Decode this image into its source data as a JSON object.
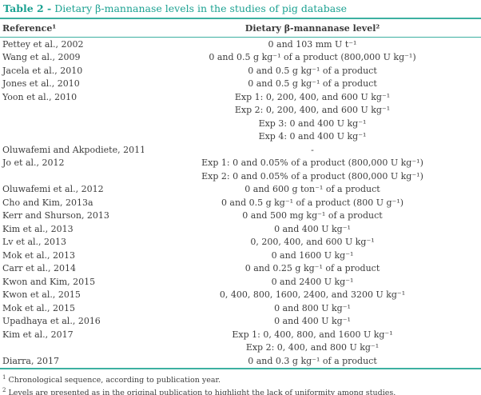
{
  "accent_color": "#1ba191",
  "text_color": "#3d3d3d",
  "table": {
    "title_prefix": "Table 2 -",
    "title_rest": "Dietary β-mannanase levels in the studies of pig database",
    "header": {
      "reference": "Reference¹",
      "level": "Dietary β-mannanase level²"
    },
    "rows": [
      {
        "ref": "Pettey et al., 2002",
        "level": "0 and 103 mm U t⁻¹"
      },
      {
        "ref": "Wang et al., 2009",
        "level": "0 and 0.5 g kg⁻¹ of a product (800,000 U kg⁻¹)"
      },
      {
        "ref": "Jacela et al., 2010",
        "level": "0 and 0.5 g kg⁻¹ of a product"
      },
      {
        "ref": "Jones et al., 2010",
        "level": "0 and 0.5 g kg⁻¹ of a product"
      },
      {
        "ref": "Yoon et al., 2010",
        "level": "Exp 1: 0, 200, 400, and 600 U kg⁻¹"
      },
      {
        "ref": "",
        "level": "Exp 2: 0, 200, 400, and 600 U kg⁻¹"
      },
      {
        "ref": "",
        "level": "Exp 3: 0 and 400 U kg⁻¹"
      },
      {
        "ref": "",
        "level": "Exp 4: 0 and 400 U kg⁻¹"
      },
      {
        "ref": "Oluwafemi and Akpodiete, 2011",
        "level": "-"
      },
      {
        "ref": "Jo et al., 2012",
        "level": "Exp 1: 0 and 0.05% of a product (800,000 U kg⁻¹)"
      },
      {
        "ref": "",
        "level": "Exp 2: 0 and 0.05% of a product (800,000 U kg⁻¹)"
      },
      {
        "ref": "Oluwafemi et al., 2012",
        "level": "0 and 600 g ton⁻¹ of a product"
      },
      {
        "ref": "Cho and Kim, 2013a",
        "level": "0 and 0.5 g kg⁻¹ of a product (800 U g⁻¹)"
      },
      {
        "ref": "Kerr and Shurson, 2013",
        "level": "0 and 500 mg kg⁻¹ of a product"
      },
      {
        "ref": "Kim et al., 2013",
        "level": "0 and 400 U kg⁻¹"
      },
      {
        "ref": "Lv et al., 2013",
        "level": "0, 200, 400, and 600 U kg⁻¹"
      },
      {
        "ref": "Mok et al., 2013",
        "level": "0 and 1600 U kg⁻¹"
      },
      {
        "ref": "Carr et al., 2014",
        "level": "0 and 0.25 g kg⁻¹ of a product"
      },
      {
        "ref": "Kwon and Kim, 2015",
        "level": "0 and 2400 U kg⁻¹"
      },
      {
        "ref": "Kwon et al., 2015",
        "level": "0, 400, 800, 1600, 2400, and 3200 U kg⁻¹"
      },
      {
        "ref": "Mok et al., 2015",
        "level": "0 and 800 U kg⁻¹"
      },
      {
        "ref": "Upadhaya et al., 2016",
        "level": "0 and 400 U kg⁻¹"
      },
      {
        "ref": "Kim et al., 2017",
        "level": "Exp 1: 0, 400, 800, and 1600 U kg⁻¹"
      },
      {
        "ref": "",
        "level": "Exp 2: 0, 400, and 800 U kg⁻¹"
      },
      {
        "ref": "Diarra, 2017",
        "level": "0 and 0.3 g kg⁻¹ of a product"
      }
    ],
    "footnotes": [
      {
        "marker": "1",
        "text": "Chronological sequence, according to publication year."
      },
      {
        "marker": "2",
        "text": "Levels are presented as in the original publication to highlight the lack of uniformity among studies."
      }
    ]
  }
}
